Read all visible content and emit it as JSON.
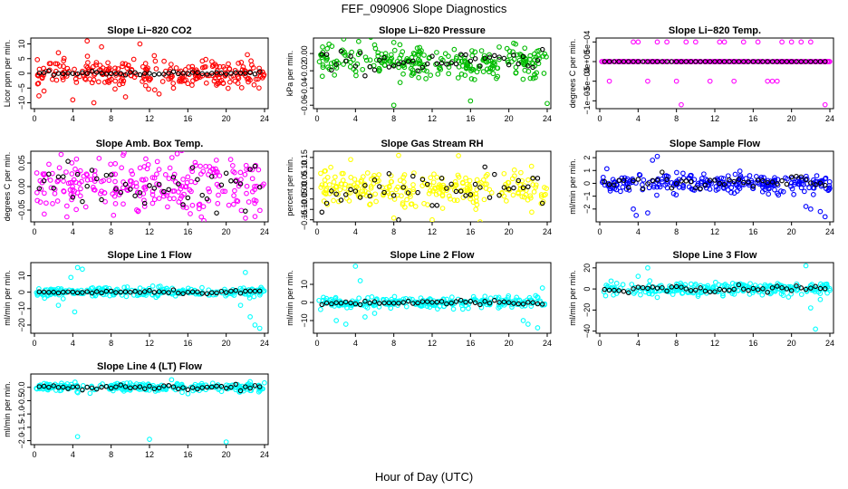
{
  "page": {
    "title": "FEF_090906  Slope Diagnostics",
    "xlabel": "Hour of Day (UTC)"
  },
  "chart_data": [
    {
      "type": "scatter",
      "title": "Slope Li−820 CO2",
      "ylabel": "Licor ppm per min.",
      "color": "#ff0000",
      "xlim": [
        0,
        24
      ],
      "ylim": [
        -12,
        12
      ],
      "x_ticks": [
        0,
        4,
        8,
        12,
        16,
        20,
        24
      ],
      "y_ticks": [
        -10,
        -5,
        0,
        5,
        10
      ],
      "y_tick_labels": [
        "−10",
        "−5",
        "0",
        "5",
        "10"
      ],
      "center": 0,
      "spread": 2.2,
      "outliers": [
        [
          1.0,
          -6
        ],
        [
          2.5,
          7
        ],
        [
          4.0,
          -9
        ],
        [
          5.5,
          11
        ],
        [
          6.2,
          -10
        ],
        [
          7.0,
          9
        ],
        [
          9.5,
          -8
        ],
        [
          11.0,
          10
        ],
        [
          13.0,
          -7
        ],
        [
          12.5,
          6
        ],
        [
          14.5,
          -5
        ]
      ],
      "black_center": 0,
      "black_spread": 0.3
    },
    {
      "type": "scatter",
      "title": "Slope Li−820 Pressure",
      "ylabel": "kPa per min.",
      "color": "#00bb00",
      "xlim": [
        0,
        24
      ],
      "ylim": [
        -0.064,
        0.018
      ],
      "x_ticks": [
        0,
        4,
        8,
        12,
        16,
        20,
        24
      ],
      "y_ticks": [
        -0.06,
        -0.04,
        -0.02,
        0
      ],
      "y_tick_labels": [
        "−0.06",
        "−0.04",
        "−0.02",
        "0.00"
      ],
      "center": -0.01,
      "spread": 0.009,
      "outliers": [
        [
          8.0,
          -0.06
        ],
        [
          16.0,
          -0.055
        ],
        [
          24.0,
          -0.058
        ],
        [
          6.0,
          0.01
        ],
        [
          20.5,
          0.012
        ]
      ],
      "black_center": -0.01,
      "black_spread": 0.006
    },
    {
      "type": "scatter",
      "title": "Slope Li−820 Temp.",
      "ylabel": "degrees C per min.",
      "color": "#ff00ff",
      "xlim": [
        0,
        24
      ],
      "ylim": [
        -0.0012,
        0.0006
      ],
      "x_ticks": [
        0,
        4,
        8,
        12,
        16,
        20,
        24
      ],
      "y_ticks": [
        -0.001,
        -0.0005,
        0,
        0.0005
      ],
      "y_tick_labels": [
        "−1e−03",
        "−5e−04",
        "0e+00",
        "5e−04"
      ],
      "center": 0,
      "spread": 0,
      "outliers": [
        [
          1.0,
          -0.0005
        ],
        [
          3.5,
          0.0005
        ],
        [
          4.0,
          0.0005
        ],
        [
          5.0,
          -0.0005
        ],
        [
          6.0,
          0.0005
        ],
        [
          7.0,
          0.0005
        ],
        [
          8.0,
          -0.0005
        ],
        [
          9.0,
          0.0005
        ],
        [
          10.0,
          0.0005
        ],
        [
          11.5,
          -0.0005
        ],
        [
          12.5,
          0.0005
        ],
        [
          13.0,
          0.0005
        ],
        [
          14.0,
          -0.0005
        ],
        [
          15.0,
          0.0005
        ],
        [
          16.5,
          0.0005
        ],
        [
          17.5,
          -0.0005
        ],
        [
          18.0,
          -0.0005
        ],
        [
          18.5,
          -0.0005
        ],
        [
          19.0,
          0.0005
        ],
        [
          20.0,
          0.0005
        ],
        [
          21.0,
          0.0005
        ],
        [
          22.0,
          0.0005
        ],
        [
          23.5,
          -0.0011
        ],
        [
          8.5,
          -0.0011
        ]
      ],
      "black_center": 0,
      "black_spread": 0
    },
    {
      "type": "scatter",
      "title": "Slope Amb. Box Temp.",
      "ylabel": "degrees C per min.",
      "color": "#ff00ff",
      "xlim": [
        0,
        24
      ],
      "ylim": [
        -0.075,
        0.075
      ],
      "x_ticks": [
        0,
        4,
        8,
        12,
        16,
        20,
        24
      ],
      "y_ticks": [
        -0.05,
        0,
        0.05
      ],
      "y_tick_labels": [
        "−0.05",
        "0.00",
        "0.05"
      ],
      "center": 0,
      "spread": 0.032,
      "outliers": [],
      "black_center": 0,
      "black_spread": 0.025
    },
    {
      "type": "scatter",
      "title": "Slope Gas Stream RH",
      "ylabel": "percent per min.",
      "color": "#ffff00",
      "xlim": [
        0,
        24
      ],
      "ylim": [
        -0.16,
        0.18
      ],
      "x_ticks": [
        0,
        4,
        8,
        12,
        16,
        20,
        24
      ],
      "y_ticks": [
        -0.15,
        -0.1,
        -0.05,
        0,
        0.05,
        0.1,
        0.15
      ],
      "y_tick_labels": [
        "−0.15",
        "−0.10",
        "−0.05",
        "0.00",
        "0.05",
        "0.10",
        "0.15"
      ],
      "center": 0,
      "spread": 0.045,
      "outliers": [
        [
          8.5,
          0.16
        ],
        [
          12.0,
          -0.15
        ],
        [
          17.0,
          -0.16
        ],
        [
          3.5,
          0.14
        ]
      ],
      "black_center": 0,
      "black_spread": 0.04
    },
    {
      "type": "scatter",
      "title": "Slope Sample Flow",
      "ylabel": "ml/min per min.",
      "color": "#0000ff",
      "xlim": [
        0,
        24
      ],
      "ylim": [
        -3,
        2.5
      ],
      "x_ticks": [
        0,
        4,
        8,
        12,
        16,
        20,
        24
      ],
      "y_ticks": [
        -2,
        -1,
        0,
        1,
        2
      ],
      "y_tick_labels": [
        "−2",
        "−1",
        "0",
        "1",
        "2"
      ],
      "center": 0,
      "spread": 0.35,
      "outliers": [
        [
          3.5,
          -2.0
        ],
        [
          3.8,
          -2.5
        ],
        [
          5.5,
          1.8
        ],
        [
          5.0,
          -2.3
        ],
        [
          6.0,
          2.1
        ],
        [
          21.5,
          -1.8
        ],
        [
          22.0,
          -2.0
        ],
        [
          23.0,
          -2.2
        ],
        [
          23.5,
          -2.6
        ]
      ],
      "black_center": 0,
      "black_spread": 0.3
    },
    {
      "type": "scatter",
      "title": "Slope Line 1 Flow",
      "ylabel": "ml/min per min.",
      "color": "#00ffff",
      "xlim": [
        0,
        24
      ],
      "ylim": [
        -25,
        18
      ],
      "x_ticks": [
        0,
        4,
        8,
        12,
        16,
        20,
        24
      ],
      "y_ticks": [
        -20,
        -10,
        0,
        10
      ],
      "y_tick_labels": [
        "−20",
        "−10",
        "0",
        "10"
      ],
      "center": 0,
      "spread": 1.5,
      "outliers": [
        [
          2.5,
          -8
        ],
        [
          3.0,
          -4
        ],
        [
          4.5,
          15
        ],
        [
          5.0,
          14
        ],
        [
          3.8,
          9
        ],
        [
          4.2,
          -12
        ],
        [
          21.5,
          -8
        ],
        [
          22.0,
          12
        ],
        [
          22.5,
          -15
        ],
        [
          23.0,
          -20
        ],
        [
          23.5,
          -22
        ]
      ],
      "black_center": 0,
      "black_spread": 0.5
    },
    {
      "type": "scatter",
      "title": "Slope Line 2 Flow",
      "ylabel": "ml/min per min.",
      "color": "#00ffff",
      "xlim": [
        0,
        24
      ],
      "ylim": [
        -17,
        22
      ],
      "x_ticks": [
        0,
        4,
        8,
        12,
        16,
        20,
        24
      ],
      "y_ticks": [
        -10,
        0,
        10
      ],
      "y_tick_labels": [
        "−10",
        "0",
        "10"
      ],
      "center": 0,
      "spread": 1.5,
      "outliers": [
        [
          2.0,
          -10
        ],
        [
          3.0,
          -12
        ],
        [
          4.0,
          20
        ],
        [
          4.5,
          12
        ],
        [
          5.0,
          -8
        ],
        [
          6.0,
          -6
        ],
        [
          21.5,
          -10
        ],
        [
          22.0,
          -12
        ],
        [
          23.0,
          -14
        ],
        [
          23.5,
          8
        ]
      ],
      "black_center": 0,
      "black_spread": 0.7
    },
    {
      "type": "scatter",
      "title": "Slope Line 3 Flow",
      "ylabel": "ml/min per min.",
      "color": "#00ffff",
      "xlim": [
        0,
        24
      ],
      "ylim": [
        -42,
        25
      ],
      "x_ticks": [
        0,
        4,
        8,
        12,
        16,
        20,
        24
      ],
      "y_ticks": [
        -40,
        -20,
        0,
        20
      ],
      "y_tick_labels": [
        "−40",
        "−20",
        "0",
        "20"
      ],
      "center": 0,
      "spread": 3,
      "outliers": [
        [
          5.0,
          20
        ],
        [
          4.0,
          12
        ],
        [
          6.0,
          -8
        ],
        [
          21.5,
          22
        ],
        [
          22.0,
          -18
        ],
        [
          22.5,
          -38
        ],
        [
          23.0,
          -10
        ]
      ],
      "black_center": 0,
      "black_spread": 1.5
    },
    {
      "type": "scatter",
      "title": "Slope Line 4 (LT) Flow",
      "ylabel": "ml/min per min.",
      "color": "#00ffff",
      "xlim": [
        0,
        24
      ],
      "ylim": [
        -2.15,
        0.5
      ],
      "x_ticks": [
        0,
        4,
        8,
        12,
        16,
        20,
        24
      ],
      "y_ticks": [
        -2,
        -1.5,
        -1,
        -0.5,
        0
      ],
      "y_tick_labels": [
        "−2.0",
        "−1.5",
        "−1.0",
        "−0.5",
        "0.0"
      ],
      "center": 0,
      "spread": 0.08,
      "outliers": [
        [
          4.5,
          -1.85
        ],
        [
          12.0,
          -1.95
        ],
        [
          20.0,
          -2.05
        ]
      ],
      "black_center": 0,
      "black_spread": 0.05
    }
  ]
}
